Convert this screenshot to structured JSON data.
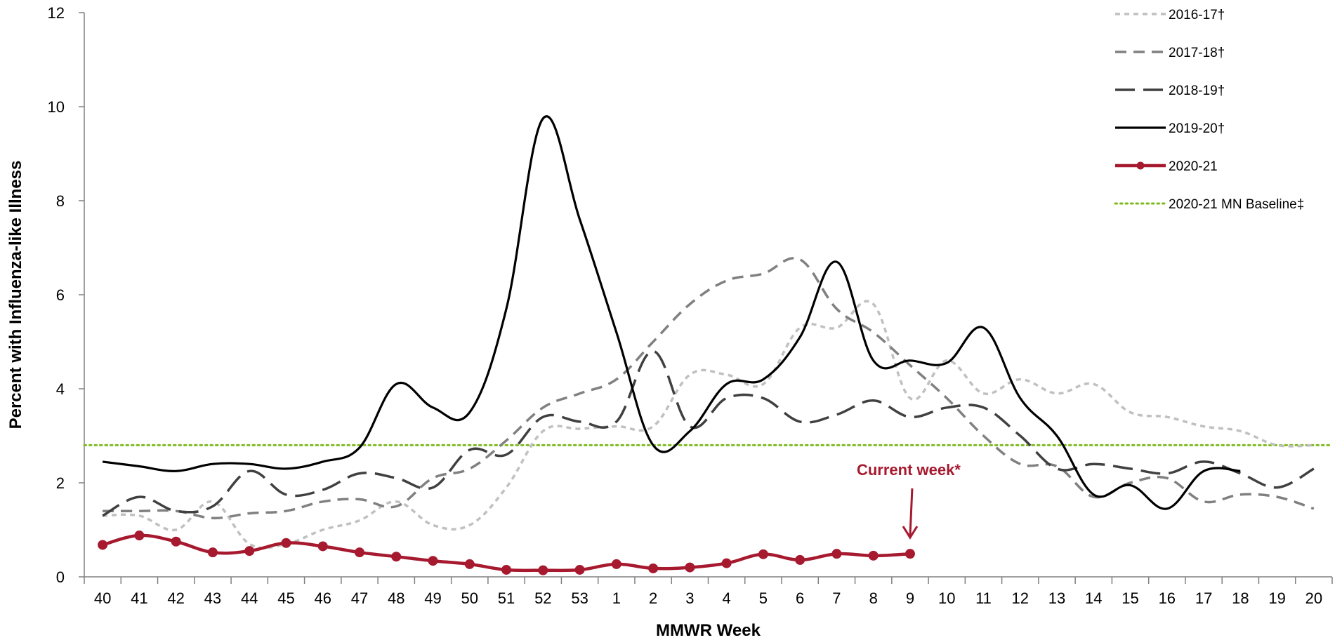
{
  "chart_data": {
    "type": "line",
    "title": "",
    "xlabel": "MMWR Week",
    "ylabel": "Percent with Influenza-like Illness",
    "ylim": [
      0,
      12
    ],
    "yticks": [
      "0",
      "2",
      "4",
      "6",
      "8",
      "10",
      "12"
    ],
    "categories": [
      "40",
      "41",
      "42",
      "43",
      "44",
      "45",
      "46",
      "47",
      "48",
      "49",
      "50",
      "51",
      "52",
      "53",
      "1",
      "2",
      "3",
      "4",
      "5",
      "6",
      "7",
      "8",
      "9",
      "10",
      "11",
      "12",
      "13",
      "14",
      "15",
      "16",
      "17",
      "18",
      "19",
      "20"
    ],
    "grid": false,
    "legend_position": "top-right",
    "series": [
      {
        "name": "2016-17†",
        "color": "#c0c0c0",
        "dash": "short-dash",
        "values": [
          1.3,
          1.3,
          1.0,
          1.6,
          0.7,
          0.7,
          1.0,
          1.2,
          1.6,
          1.1,
          1.1,
          1.9,
          3.1,
          3.15,
          3.2,
          3.2,
          4.3,
          4.3,
          4.1,
          5.3,
          5.3,
          5.8,
          3.8,
          4.6,
          3.9,
          4.2,
          3.9,
          4.1,
          3.5,
          3.4,
          3.2,
          3.1,
          2.8,
          2.8
        ]
      },
      {
        "name": "2017-18†",
        "color": "#808080",
        "dash": "medium-dash",
        "values": [
          1.4,
          1.4,
          1.4,
          1.25,
          1.35,
          1.4,
          1.6,
          1.65,
          1.5,
          2.1,
          2.3,
          2.9,
          3.6,
          3.9,
          4.2,
          5.0,
          5.8,
          6.3,
          6.45,
          6.75,
          5.7,
          5.2,
          4.5,
          3.8,
          3.0,
          2.4,
          2.35,
          1.7,
          2.0,
          2.1,
          1.6,
          1.75,
          1.7,
          1.45
        ]
      },
      {
        "name": "2018-19†",
        "color": "#404040",
        "dash": "long-dash",
        "values": [
          1.3,
          1.7,
          1.4,
          1.5,
          2.25,
          1.75,
          1.85,
          2.2,
          2.1,
          1.9,
          2.7,
          2.6,
          3.4,
          3.3,
          3.3,
          4.8,
          3.2,
          3.8,
          3.8,
          3.3,
          3.45,
          3.75,
          3.4,
          3.6,
          3.6,
          3.0,
          2.3,
          2.4,
          2.3,
          2.2,
          2.45,
          2.2,
          1.9,
          2.3
        ]
      },
      {
        "name": "2019-20†",
        "color": "#000000",
        "dash": "solid",
        "values": [
          2.45,
          2.35,
          2.25,
          2.4,
          2.4,
          2.3,
          2.45,
          2.75,
          4.1,
          3.6,
          3.5,
          5.7,
          9.75,
          7.6,
          5.2,
          2.8,
          3.1,
          4.1,
          4.2,
          5.1,
          6.7,
          4.6,
          4.6,
          4.55,
          5.3,
          3.8,
          3.0,
          1.75,
          1.95,
          1.45,
          2.25,
          2.25,
          null,
          null
        ]
      },
      {
        "name": "2020-21",
        "color": "#a6192e",
        "dash": "solid-markers",
        "values": [
          0.68,
          0.88,
          0.75,
          0.52,
          0.55,
          0.72,
          0.65,
          0.52,
          0.43,
          0.34,
          0.27,
          0.15,
          0.14,
          0.15,
          0.27,
          0.18,
          0.2,
          0.29,
          0.48,
          0.36,
          0.49,
          0.45,
          0.49,
          null,
          null,
          null,
          null,
          null,
          null,
          null,
          null,
          null,
          null,
          null
        ]
      },
      {
        "name": "2020-21 MN Baseline‡",
        "color": "#7fba1f",
        "dash": "dotted",
        "values": [
          2.8,
          2.8,
          2.8,
          2.8,
          2.8,
          2.8,
          2.8,
          2.8,
          2.8,
          2.8,
          2.8,
          2.8,
          2.8,
          2.8,
          2.8,
          2.8,
          2.8,
          2.8,
          2.8,
          2.8,
          2.8,
          2.8,
          2.8,
          2.8,
          2.8,
          2.8,
          2.8,
          2.8,
          2.8,
          2.8,
          2.8,
          2.8,
          2.8,
          2.8
        ]
      }
    ],
    "annotations": [
      {
        "text": "Current week*",
        "category": "9",
        "color": "#a6192e"
      }
    ]
  }
}
